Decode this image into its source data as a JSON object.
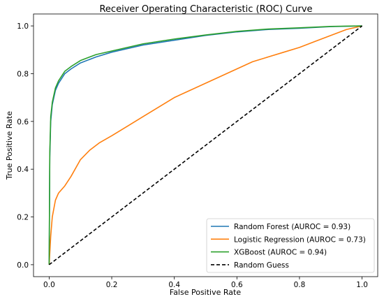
{
  "chart_data": {
    "type": "line",
    "title": "Receiver Operating Characteristic (ROC) Curve",
    "xlabel": "False Positive Rate",
    "ylabel": "True Positive Rate",
    "xlim": [
      -0.05,
      1.05
    ],
    "ylim": [
      -0.05,
      1.05
    ],
    "xticks": [
      "0.0",
      "0.2",
      "0.4",
      "0.6",
      "0.8",
      "1.0"
    ],
    "yticks": [
      "0.0",
      "0.2",
      "0.4",
      "0.6",
      "0.8",
      "1.0"
    ],
    "grid": false,
    "legend": "lower-right",
    "series": [
      {
        "name": "Random Forest (AUROC = 0.93)",
        "color": "#1f77b4",
        "style": "solid",
        "x": [
          0,
          0.002,
          0.005,
          0.01,
          0.02,
          0.03,
          0.04,
          0.05,
          0.07,
          0.1,
          0.15,
          0.2,
          0.25,
          0.3,
          0.4,
          0.5,
          0.6,
          0.7,
          0.8,
          0.9,
          1.0
        ],
        "y": [
          0,
          0.45,
          0.6,
          0.67,
          0.73,
          0.76,
          0.78,
          0.8,
          0.82,
          0.845,
          0.87,
          0.89,
          0.905,
          0.92,
          0.94,
          0.96,
          0.975,
          0.985,
          0.99,
          0.997,
          1.0
        ]
      },
      {
        "name": "Logistic Regression (AUROC = 0.73)",
        "color": "#ff7f0e",
        "style": "solid",
        "x": [
          0,
          0.005,
          0.01,
          0.02,
          0.03,
          0.05,
          0.07,
          0.1,
          0.13,
          0.16,
          0.2,
          0.25,
          0.3,
          0.35,
          0.4,
          0.45,
          0.5,
          0.55,
          0.6,
          0.65,
          0.7,
          0.75,
          0.8,
          0.85,
          0.9,
          0.95,
          1.0
        ],
        "y": [
          0,
          0.12,
          0.2,
          0.27,
          0.3,
          0.33,
          0.37,
          0.44,
          0.48,
          0.51,
          0.54,
          0.58,
          0.62,
          0.66,
          0.7,
          0.73,
          0.76,
          0.79,
          0.82,
          0.85,
          0.87,
          0.89,
          0.91,
          0.935,
          0.96,
          0.985,
          1.0
        ]
      },
      {
        "name": "XGBoost (AUROC = 0.94)",
        "color": "#2ca02c",
        "style": "solid",
        "x": [
          0,
          0.002,
          0.005,
          0.01,
          0.02,
          0.03,
          0.04,
          0.05,
          0.07,
          0.1,
          0.15,
          0.2,
          0.25,
          0.3,
          0.4,
          0.5,
          0.6,
          0.7,
          0.8,
          0.9,
          1.0
        ],
        "y": [
          0,
          0.47,
          0.62,
          0.68,
          0.74,
          0.77,
          0.79,
          0.81,
          0.83,
          0.855,
          0.88,
          0.895,
          0.91,
          0.925,
          0.945,
          0.962,
          0.977,
          0.987,
          0.992,
          0.998,
          1.0
        ]
      },
      {
        "name": "Random Guess",
        "color": "#000000",
        "style": "dashed",
        "x": [
          0,
          1
        ],
        "y": [
          0,
          1
        ]
      }
    ]
  }
}
